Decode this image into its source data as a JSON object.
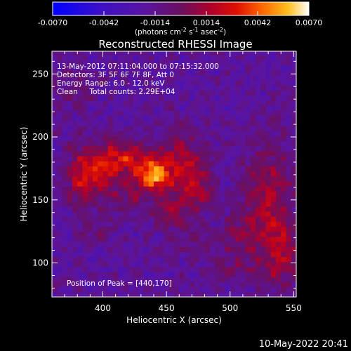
{
  "chart_data": {
    "type": "heatmap",
    "title": "Reconstructed RHESSI Image",
    "xlabel": "Heliocentric X (arcsec)",
    "ylabel": "Heliocentric Y (arcsec)",
    "xlim": [
      360,
      552
    ],
    "ylim": [
      73,
      268
    ],
    "xticks": [
      400,
      450,
      500,
      550
    ],
    "yticks": [
      100,
      150,
      200,
      250
    ],
    "colorbar": {
      "ticks": [
        "-0.0070",
        "-0.0042",
        "-0.0014",
        "0.0014",
        "0.0042",
        "0.0070"
      ],
      "range": [
        -0.007,
        0.007
      ],
      "units_label": "(photons cm-2 s-1 asec-2)"
    },
    "annotations": [
      "13-May-2012 07:11:04.000 to 07:15:32.000",
      "Detectors: 3F 5F 6F 7F 8F, Att 0",
      "Energy Range: 6.0 - 12.0 keV",
      "Clean     Total counts: 2.29E+04"
    ],
    "peak_label": "Position of Peak = [440,170]",
    "peak": {
      "x": 440,
      "y": 170,
      "value": 0.007
    },
    "blobs": [
      {
        "x": 440,
        "y": 170,
        "amp": 0.0068,
        "sx": 9,
        "sy": 9
      },
      {
        "x": 418,
        "y": 184,
        "amp": 0.0036,
        "sx": 14,
        "sy": 10
      },
      {
        "x": 398,
        "y": 172,
        "amp": 0.0034,
        "sx": 12,
        "sy": 14
      },
      {
        "x": 382,
        "y": 168,
        "amp": 0.0026,
        "sx": 8,
        "sy": 16
      },
      {
        "x": 462,
        "y": 182,
        "amp": 0.0032,
        "sx": 12,
        "sy": 16
      },
      {
        "x": 472,
        "y": 158,
        "amp": 0.0028,
        "sx": 10,
        "sy": 12
      },
      {
        "x": 452,
        "y": 140,
        "amp": 0.0022,
        "sx": 10,
        "sy": 9
      },
      {
        "x": 420,
        "y": 150,
        "amp": 0.0018,
        "sx": 10,
        "sy": 8
      },
      {
        "x": 530,
        "y": 150,
        "amp": 0.003,
        "sx": 14,
        "sy": 32
      },
      {
        "x": 540,
        "y": 108,
        "amp": 0.0024,
        "sx": 12,
        "sy": 20
      },
      {
        "x": 505,
        "y": 122,
        "amp": 0.0016,
        "sx": 10,
        "sy": 14
      },
      {
        "x": 470,
        "y": 120,
        "amp": 0.0012,
        "sx": 10,
        "sy": 10
      },
      {
        "x": 378,
        "y": 238,
        "amp": 0.0014,
        "sx": 10,
        "sy": 10
      },
      {
        "x": 395,
        "y": 125,
        "amp": 0.001,
        "sx": 10,
        "sy": 8
      },
      {
        "x": 500,
        "y": 95,
        "amp": 0.001,
        "sx": 16,
        "sy": 8
      }
    ],
    "background": -0.0018,
    "noise": 0.0009
  },
  "footer_timestamp": "10-May-2022 20:41"
}
